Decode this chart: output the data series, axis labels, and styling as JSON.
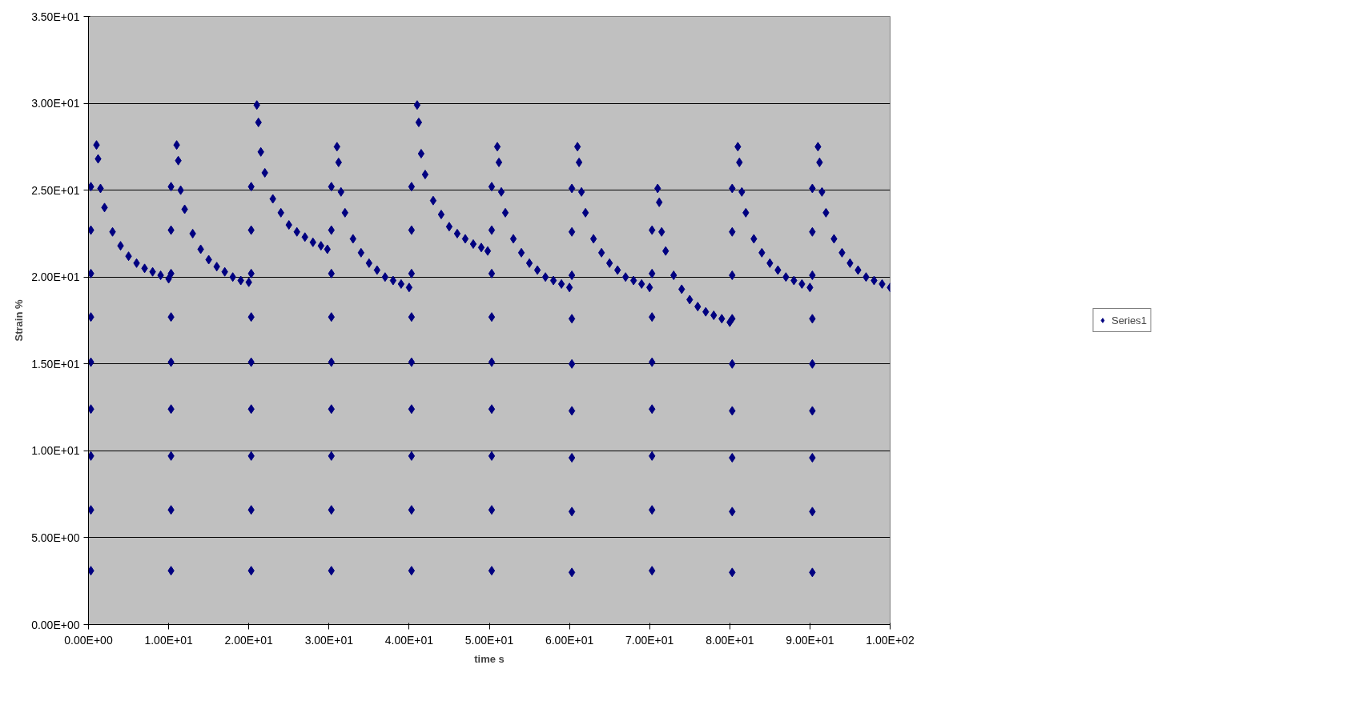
{
  "chart_data": {
    "type": "scatter",
    "xlabel": "time s",
    "ylabel": "Strain %",
    "marker": "diamond",
    "grid": "y",
    "legend": "right",
    "xlim": [
      0,
      100
    ],
    "ylim": [
      0,
      35
    ],
    "xticks": [
      {
        "value": 0,
        "label": "0.00E+00"
      },
      {
        "value": 10,
        "label": "1.00E+01"
      },
      {
        "value": 20,
        "label": "2.00E+01"
      },
      {
        "value": 30,
        "label": "3.00E+01"
      },
      {
        "value": 40,
        "label": "4.00E+01"
      },
      {
        "value": 50,
        "label": "5.00E+01"
      },
      {
        "value": 60,
        "label": "6.00E+01"
      },
      {
        "value": 70,
        "label": "7.00E+01"
      },
      {
        "value": 80,
        "label": "8.00E+01"
      },
      {
        "value": 90,
        "label": "9.00E+01"
      },
      {
        "value": 100,
        "label": "1.00E+02"
      }
    ],
    "yticks": [
      {
        "value": 0,
        "label": "0.00E+00"
      },
      {
        "value": 5,
        "label": "5.00E+00"
      },
      {
        "value": 10,
        "label": "1.00E+01"
      },
      {
        "value": 15,
        "label": "1.50E+01"
      },
      {
        "value": 20,
        "label": "2.00E+01"
      },
      {
        "value": 25,
        "label": "2.50E+01"
      },
      {
        "value": 30,
        "label": "3.00E+01"
      },
      {
        "value": 35,
        "label": "3.50E+01"
      }
    ],
    "series": [
      {
        "name": "Series1",
        "color": "#000080",
        "x": [
          0.3,
          0.3,
          0.3,
          0.3,
          0.3,
          0.3,
          0.3,
          0.3,
          0.3,
          1,
          1.2,
          1.5,
          2,
          3,
          4,
          5,
          6,
          7,
          8,
          9,
          10,
          10.3,
          10.3,
          10.3,
          10.3,
          10.3,
          10.3,
          10.3,
          10.3,
          10.3,
          11,
          11.2,
          11.5,
          12,
          13,
          14,
          15,
          16,
          17,
          18,
          19,
          20,
          20.3,
          20.3,
          20.3,
          20.3,
          20.3,
          20.3,
          20.3,
          20.3,
          20.3,
          21,
          21.2,
          21.5,
          22,
          23,
          24,
          25,
          26,
          27,
          28,
          29,
          29.8,
          30.3,
          30.3,
          30.3,
          30.3,
          30.3,
          30.3,
          30.3,
          30.3,
          30.3,
          31,
          31.2,
          31.5,
          32,
          33,
          34,
          35,
          36,
          37,
          38,
          39,
          40,
          40.3,
          40.3,
          40.3,
          40.3,
          40.3,
          40.3,
          40.3,
          40.3,
          40.3,
          41,
          41.2,
          41.5,
          42,
          43,
          44,
          45,
          46,
          47,
          48,
          49,
          49.8,
          50.3,
          50.3,
          50.3,
          50.3,
          50.3,
          50.3,
          50.3,
          50.3,
          50.3,
          51,
          51.2,
          51.5,
          52,
          53,
          54,
          55,
          56,
          57,
          58,
          59,
          60,
          60.3,
          60.3,
          60.3,
          60.3,
          60.3,
          60.3,
          60.3,
          60.3,
          60.3,
          61,
          61.2,
          61.5,
          62,
          63,
          64,
          65,
          66,
          67,
          68,
          69,
          70,
          70.3,
          70.3,
          70.3,
          70.3,
          70.3,
          70.3,
          70.3,
          70.3,
          71,
          71.2,
          71.5,
          72,
          73,
          74,
          75,
          76,
          77,
          78,
          79,
          80,
          80.3,
          80.3,
          80.3,
          80.3,
          80.3,
          80.3,
          80.3,
          80.3,
          80.3,
          81,
          81.2,
          81.5,
          82,
          83,
          84,
          85,
          86,
          87,
          88,
          89,
          90,
          90.3,
          90.3,
          90.3,
          90.3,
          90.3,
          90.3,
          90.3,
          90.3,
          90.3,
          91,
          91.2,
          91.5,
          92,
          93,
          94,
          95,
          96,
          97,
          98,
          99,
          100
        ],
        "values": [
          3.1,
          6.6,
          9.7,
          12.4,
          15.1,
          17.7,
          20.2,
          22.7,
          25.2,
          27.6,
          26.8,
          25.1,
          24.0,
          22.6,
          21.8,
          21.2,
          20.8,
          20.5,
          20.3,
          20.1,
          19.9,
          3.1,
          6.6,
          9.7,
          12.4,
          15.1,
          17.7,
          20.2,
          22.7,
          25.2,
          27.6,
          26.7,
          25.0,
          23.9,
          22.5,
          21.6,
          21.0,
          20.6,
          20.3,
          20.0,
          19.8,
          19.7,
          3.1,
          6.6,
          9.7,
          12.4,
          15.1,
          17.7,
          20.2,
          22.7,
          25.2,
          29.9,
          28.9,
          27.2,
          26.0,
          24.5,
          23.7,
          23.0,
          22.6,
          22.3,
          22.0,
          21.8,
          21.6,
          3.1,
          6.6,
          9.7,
          12.4,
          15.1,
          17.7,
          20.2,
          22.7,
          25.2,
          27.5,
          26.6,
          24.9,
          23.7,
          22.2,
          21.4,
          20.8,
          20.4,
          20.0,
          19.8,
          19.6,
          19.4,
          3.1,
          6.6,
          9.7,
          12.4,
          15.1,
          17.7,
          20.2,
          22.7,
          25.2,
          29.9,
          28.9,
          27.1,
          25.9,
          24.4,
          23.6,
          22.9,
          22.5,
          22.2,
          21.9,
          21.7,
          21.5,
          3.1,
          6.6,
          9.7,
          12.4,
          15.1,
          17.7,
          20.2,
          22.7,
          25.2,
          27.5,
          26.6,
          24.9,
          23.7,
          22.2,
          21.4,
          20.8,
          20.4,
          20.0,
          19.8,
          19.6,
          19.4,
          3.0,
          6.5,
          9.6,
          12.3,
          15.0,
          17.6,
          20.1,
          22.6,
          25.1,
          27.5,
          26.6,
          24.9,
          23.7,
          22.2,
          21.4,
          20.8,
          20.4,
          20.0,
          19.8,
          19.6,
          19.4,
          3.1,
          6.6,
          9.7,
          12.4,
          15.1,
          17.7,
          20.2,
          22.7,
          25.1,
          24.3,
          22.6,
          21.5,
          20.1,
          19.3,
          18.7,
          18.3,
          18.0,
          17.8,
          17.6,
          17.4,
          3.0,
          6.5,
          9.6,
          12.3,
          15.0,
          17.6,
          20.1,
          22.6,
          25.1,
          27.5,
          26.6,
          24.9,
          23.7,
          22.2,
          21.4,
          20.8,
          20.4,
          20.0,
          19.8,
          19.6,
          19.4,
          3.0,
          6.5,
          9.6,
          12.3,
          15.0,
          17.6,
          20.1,
          22.6,
          25.1,
          27.5,
          26.6,
          24.9,
          23.7,
          22.2,
          21.4,
          20.8,
          20.4,
          20.0,
          19.8,
          19.6,
          19.4
        ]
      }
    ]
  }
}
